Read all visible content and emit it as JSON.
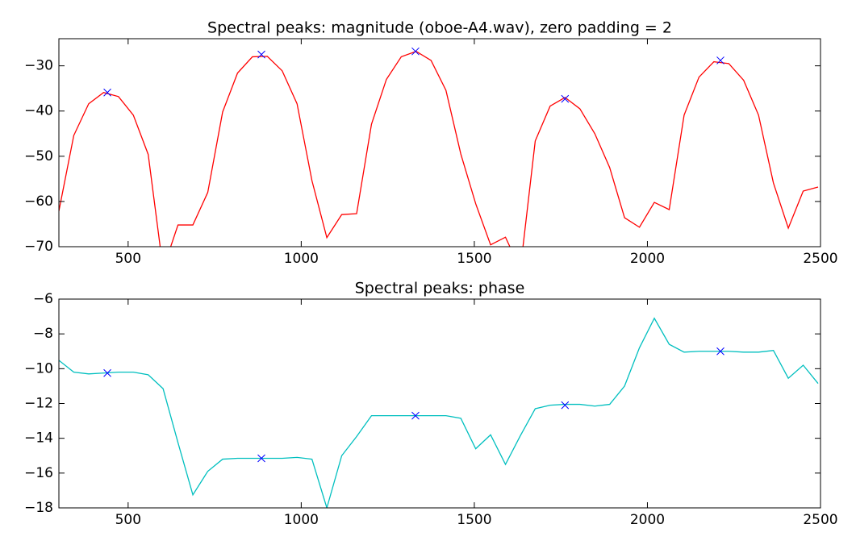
{
  "chart_data": [
    {
      "type": "line",
      "title": "Spectral peaks: magnitude (oboe-A4.wav), zero padding = 2",
      "xlim": [
        300,
        2500
      ],
      "xticks": [
        500,
        1000,
        1500,
        2000,
        2500
      ],
      "ylim": [
        -70,
        -24
      ],
      "yticks": [
        {
          "value": -70,
          "label": "−70"
        },
        {
          "value": -60,
          "label": "−60"
        },
        {
          "value": -50,
          "label": "−50"
        },
        {
          "value": -40,
          "label": "−40"
        },
        {
          "value": -30,
          "label": "−30"
        }
      ],
      "series": [
        {
          "color": "#ff0000",
          "marker": "none",
          "x": [
            300,
            343,
            386,
            429,
            472,
            515,
            558,
            601,
            644,
            687,
            730,
            773,
            816,
            859,
            902,
            945,
            988,
            1031,
            1074,
            1117,
            1160,
            1203,
            1246,
            1289,
            1332,
            1375,
            1418,
            1461,
            1504,
            1547,
            1590,
            1633,
            1676,
            1719,
            1762,
            1805,
            1848,
            1891,
            1934,
            1977,
            2020,
            2063,
            2106,
            2149,
            2192,
            2235,
            2278,
            2321,
            2364,
            2407,
            2450,
            2493
          ],
          "values": [
            -62.1,
            -45.4,
            -38.4,
            -35.9,
            -36.8,
            -40.9,
            -49.6,
            -75,
            -65.2,
            -65.2,
            -58.0,
            -40.2,
            -31.6,
            -28.0,
            -27.9,
            -31.1,
            -38.4,
            -55.4,
            -68.0,
            -62.9,
            -62.7,
            -42.9,
            -33.0,
            -28.0,
            -26.8,
            -28.8,
            -35.4,
            -49.5,
            -60.5,
            -69.6,
            -67.9,
            -75,
            -46.6,
            -38.9,
            -37.0,
            -39.5,
            -45.0,
            -52.5,
            -63.6,
            -65.7,
            -60.2,
            -61.8,
            -40.9,
            -32.5,
            -29.1,
            -29.5,
            -33.2,
            -40.9,
            -55.9,
            -65.9,
            -57.7,
            -56.8
          ]
        },
        {
          "color": "#0000ff",
          "marker": "x",
          "x": [
            440,
            885,
            1330,
            1762,
            2211
          ],
          "values": [
            -35.9,
            -27.5,
            -26.8,
            -37.3,
            -28.8
          ]
        }
      ]
    },
    {
      "type": "line",
      "title": "Spectral peaks: phase",
      "xlim": [
        300,
        2500
      ],
      "xticks": [
        500,
        1000,
        1500,
        2000,
        2500
      ],
      "ylim": [
        -18,
        -6
      ],
      "yticks": [
        {
          "value": -18,
          "label": "−18"
        },
        {
          "value": -16,
          "label": "−16"
        },
        {
          "value": -14,
          "label": "−14"
        },
        {
          "value": -12,
          "label": "−12"
        },
        {
          "value": -10,
          "label": "−10"
        },
        {
          "value": -8,
          "label": "−8"
        },
        {
          "value": -6,
          "label": "−6"
        }
      ],
      "series": [
        {
          "color": "#00bfbf",
          "marker": "none",
          "x": [
            300,
            343,
            386,
            429,
            472,
            515,
            558,
            601,
            644,
            687,
            730,
            773,
            816,
            859,
            902,
            945,
            988,
            1031,
            1074,
            1117,
            1160,
            1203,
            1246,
            1289,
            1332,
            1375,
            1418,
            1461,
            1504,
            1547,
            1590,
            1633,
            1676,
            1719,
            1762,
            1805,
            1848,
            1891,
            1934,
            1977,
            2020,
            2063,
            2106,
            2149,
            2192,
            2235,
            2278,
            2321,
            2364,
            2407,
            2450,
            2493
          ],
          "values": [
            -9.52,
            -10.2,
            -10.3,
            -10.25,
            -10.2,
            -10.2,
            -10.35,
            -11.15,
            -14.25,
            -17.25,
            -15.9,
            -15.2,
            -15.15,
            -15.15,
            -15.15,
            -15.15,
            -15.1,
            -15.2,
            -18.0,
            -15.0,
            -13.9,
            -12.7,
            -12.7,
            -12.7,
            -12.7,
            -12.7,
            -12.7,
            -12.85,
            -14.6,
            -13.8,
            -15.5,
            -13.85,
            -12.3,
            -12.1,
            -12.05,
            -12.05,
            -12.15,
            -12.05,
            -11.0,
            -8.8,
            -7.1,
            -8.6,
            -9.05,
            -9.0,
            -9.0,
            -9.0,
            -9.05,
            -9.05,
            -8.95,
            -10.55,
            -9.8,
            -10.85
          ]
        },
        {
          "color": "#0000ff",
          "marker": "x",
          "x": [
            440,
            885,
            1330,
            1762,
            2211
          ],
          "values": [
            -10.25,
            -15.15,
            -12.7,
            -12.1,
            -9.0
          ]
        }
      ]
    }
  ]
}
